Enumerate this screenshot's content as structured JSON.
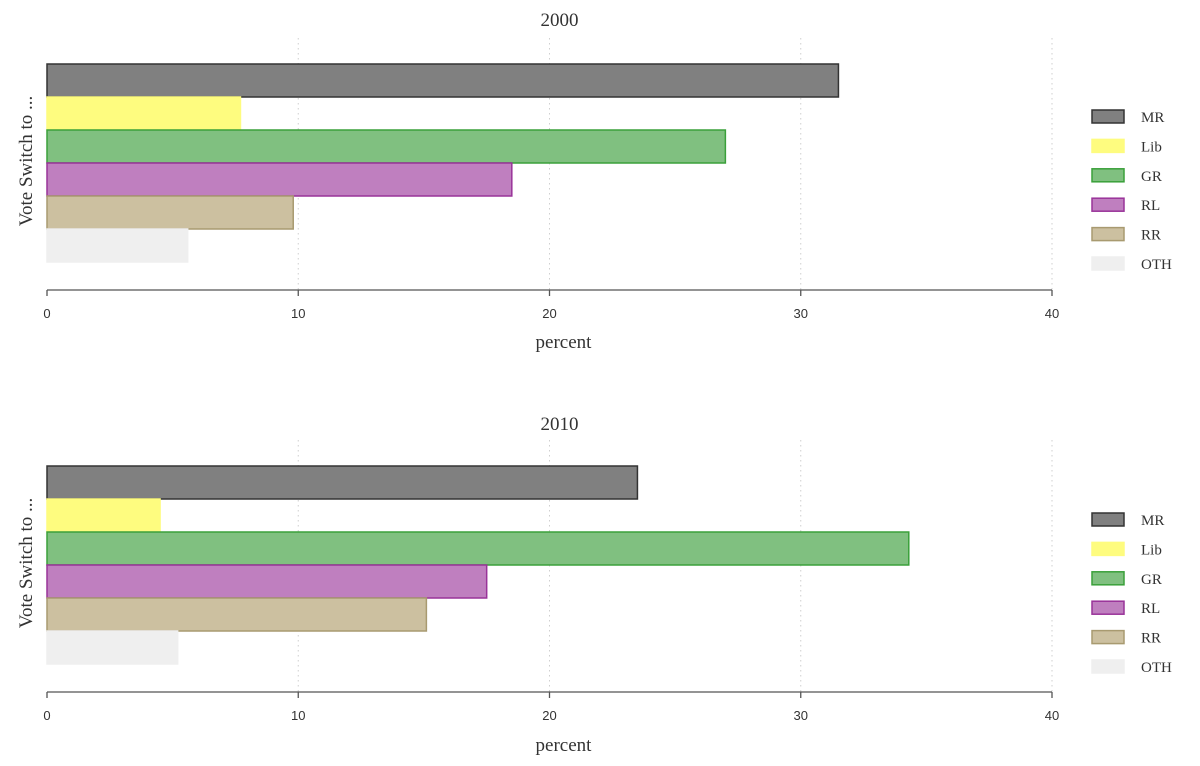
{
  "chart_data": [
    {
      "type": "bar",
      "orientation": "horizontal",
      "title": "2000",
      "xlabel": "percent",
      "ylabel": "Vote Switch to ...",
      "xlim": [
        0,
        40
      ],
      "xticks": [
        "0",
        "10",
        "20",
        "30",
        "40"
      ],
      "grid": "vertical dotted",
      "legend_position": "right",
      "categories": [
        "MR",
        "Lib",
        "GR",
        "RL",
        "RR",
        "OTH"
      ],
      "values": [
        31.5,
        7.7,
        27.0,
        18.5,
        9.8,
        5.6
      ],
      "colors": [
        "#808080",
        "#fefc7f",
        "#80c080",
        "#bf7fbf",
        "#ccc0a0",
        "#efefef"
      ],
      "borders": [
        "#333333",
        "#fefc7f",
        "#3aa03a",
        "#993399",
        "#a89a70",
        "#efefef"
      ]
    },
    {
      "type": "bar",
      "orientation": "horizontal",
      "title": "2010",
      "xlabel": "percent",
      "ylabel": "Vote Switch to ...",
      "xlim": [
        0,
        40
      ],
      "xticks": [
        "0",
        "10",
        "20",
        "30",
        "40"
      ],
      "grid": "vertical dotted",
      "legend_position": "right",
      "categories": [
        "MR",
        "Lib",
        "GR",
        "RL",
        "RR",
        "OTH"
      ],
      "values": [
        23.5,
        4.5,
        34.3,
        17.5,
        15.1,
        5.2
      ],
      "colors": [
        "#808080",
        "#fefc7f",
        "#80c080",
        "#bf7fbf",
        "#ccc0a0",
        "#efefef"
      ],
      "borders": [
        "#333333",
        "#fefc7f",
        "#3aa03a",
        "#993399",
        "#a89a70",
        "#efefef"
      ]
    }
  ]
}
